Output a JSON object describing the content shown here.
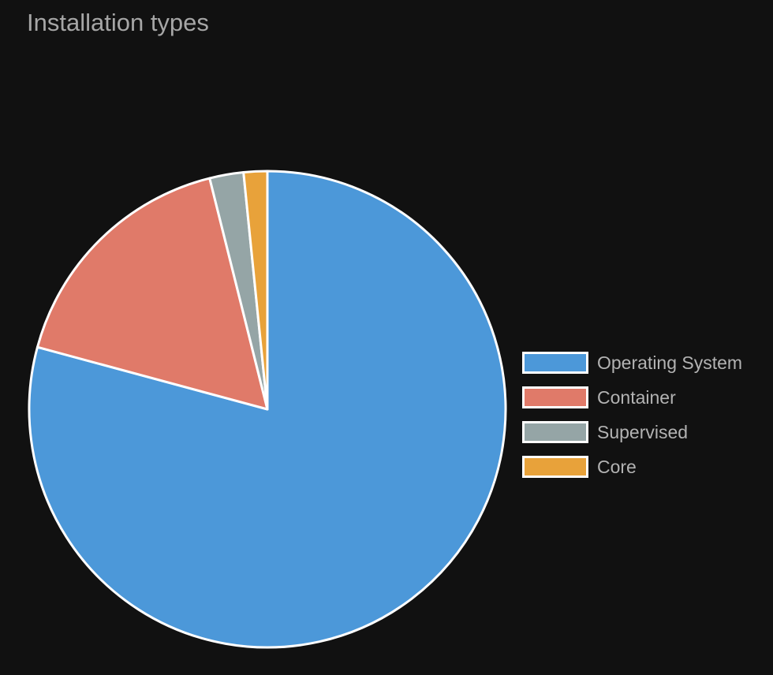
{
  "chart_data": {
    "type": "pie",
    "title": "Installation types",
    "categories": [
      "Operating System",
      "Container",
      "Supervised",
      "Core"
    ],
    "values": [
      79.2,
      16.9,
      2.3,
      1.6
    ],
    "colors": [
      "#4c98d9",
      "#e07a69",
      "#95a5a6",
      "#e8a23a"
    ],
    "start_angle_deg": 0,
    "direction": "clockwise",
    "slice_border_color": "#ffffff",
    "legend_position": "right"
  },
  "page": {
    "background": "#111111",
    "title_color": "#a6a6a6",
    "legend_text_color": "#b3b3b3"
  }
}
